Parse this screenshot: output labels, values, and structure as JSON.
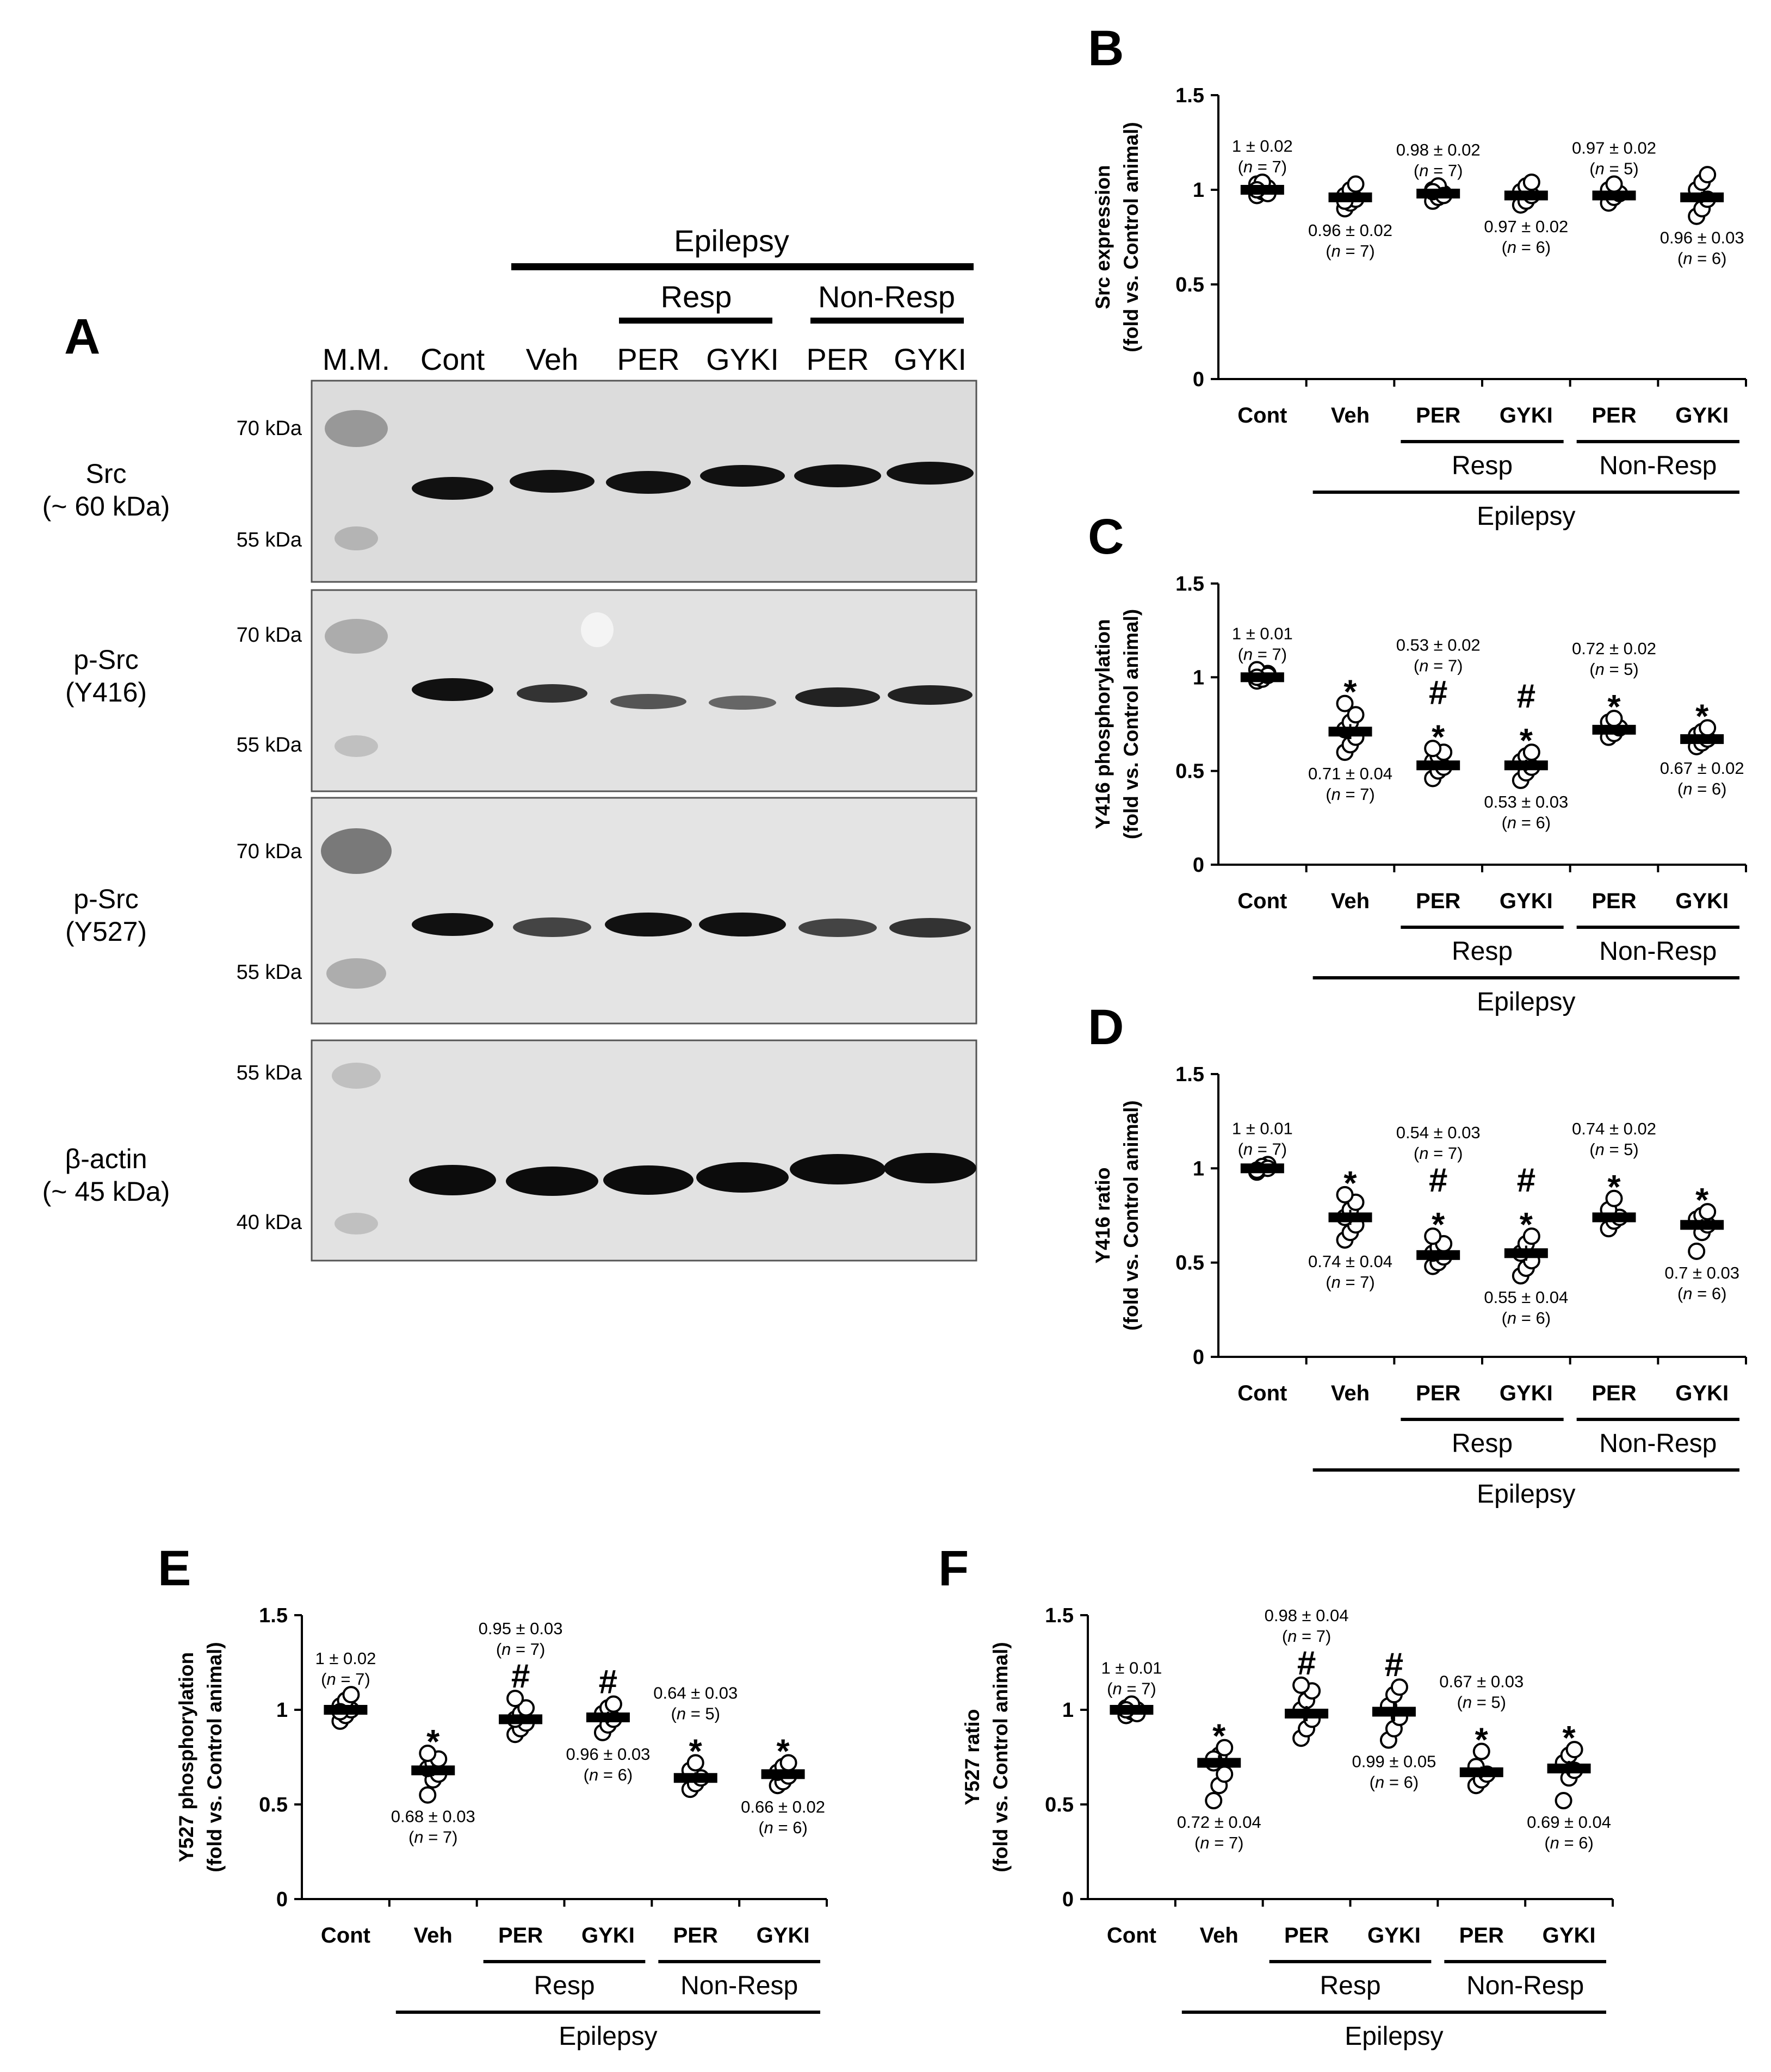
{
  "figure": {
    "panel_a": {
      "letter": "A",
      "group_label": "Epilepsy",
      "resp_label": "Resp",
      "nonresp_label": "Non-Resp",
      "lanes": [
        "M.M.",
        "Cont",
        "Veh",
        "PER",
        "GYKI",
        "PER",
        "GYKI"
      ],
      "blots": [
        {
          "name": "Src",
          "sub": "(~ 60 kDa)",
          "markers": [
            "70 kDa",
            "55 kDa"
          ]
        },
        {
          "name": "p-Src",
          "sub": "(Y416)",
          "markers": [
            "70 kDa",
            "55 kDa"
          ]
        },
        {
          "name": "p-Src",
          "sub": "(Y527)",
          "markers": [
            "70 kDa",
            "55 kDa"
          ]
        },
        {
          "name": "β-actin",
          "sub": "(~ 45 kDa)",
          "markers": [
            "55 kDa",
            "40 kDa"
          ]
        }
      ]
    },
    "common": {
      "categories": [
        "Cont",
        "Veh",
        "PER",
        "GYKI",
        "PER",
        "GYKI"
      ],
      "resp_label": "Resp",
      "nonresp_label": "Non-Resp",
      "group_label": "Epilepsy",
      "y_unit_label": "(fold vs. Control animal)",
      "yticks": [
        "0",
        "0.5",
        "1",
        "1.5"
      ]
    }
  },
  "chart_data": [
    {
      "panel": "B",
      "type": "scatter",
      "title": "",
      "ylabel": "Src expression",
      "ylim": [
        0,
        1.5
      ],
      "means": [
        1.0,
        0.96,
        0.98,
        0.97,
        0.97,
        0.96
      ],
      "sem": [
        0.02,
        0.02,
        0.02,
        0.02,
        0.02,
        0.03
      ],
      "n": [
        7,
        7,
        7,
        6,
        5,
        6
      ],
      "labels": [
        "1 ± 0.02",
        "0.96 ± 0.02",
        "0.98 ± 0.02",
        "0.97 ± 0.02",
        "0.97 ± 0.02",
        "0.96 ± 0.03"
      ],
      "n_labels": [
        "(n = 7)",
        "(n = 7)",
        "(n = 7)",
        "(n = 6)",
        "(n = 5)",
        "(n = 6)"
      ],
      "label_pos": [
        "above",
        "below",
        "above",
        "below",
        "above",
        "below"
      ],
      "points": [
        [
          0.97,
          0.99,
          1.01,
          1.03,
          1.04,
          0.98,
          1.0
        ],
        [
          0.9,
          0.93,
          0.95,
          0.97,
          1.0,
          1.03,
          0.94
        ],
        [
          0.94,
          0.96,
          0.98,
          1.0,
          1.02,
          0.97,
          0.99
        ],
        [
          0.92,
          0.94,
          0.97,
          0.99,
          1.02,
          1.04
        ],
        [
          0.93,
          0.96,
          0.98,
          1.0,
          1.03
        ],
        [
          0.86,
          0.9,
          0.95,
          1.0,
          1.04,
          1.08
        ]
      ],
      "sig": [
        [],
        [],
        [],
        [],
        [],
        []
      ]
    },
    {
      "panel": "C",
      "type": "scatter",
      "title": "",
      "ylabel": "Y416 phosphorylation",
      "ylim": [
        0,
        1.5
      ],
      "means": [
        1.0,
        0.71,
        0.53,
        0.53,
        0.72,
        0.67
      ],
      "sem": [
        0.01,
        0.04,
        0.02,
        0.03,
        0.02,
        0.02
      ],
      "n": [
        7,
        7,
        7,
        6,
        5,
        6
      ],
      "labels": [
        "1 ± 0.01",
        "0.71 ± 0.04",
        "0.53 ± 0.02",
        "0.53 ± 0.03",
        "0.72 ± 0.02",
        "0.67 ± 0.02"
      ],
      "n_labels": [
        "(n = 7)",
        "(n = 7)",
        "(n = 7)",
        "(n = 6)",
        "(n = 5)",
        "(n = 6)"
      ],
      "label_pos": [
        "above",
        "below",
        "above",
        "below",
        "above",
        "below"
      ],
      "points": [
        [
          0.98,
          1.0,
          1.02,
          1.04,
          0.99,
          1.01,
          1.0
        ],
        [
          0.6,
          0.64,
          0.68,
          0.72,
          0.76,
          0.8,
          0.86
        ],
        [
          0.46,
          0.5,
          0.52,
          0.55,
          0.58,
          0.6,
          0.62
        ],
        [
          0.45,
          0.49,
          0.52,
          0.55,
          0.58,
          0.6
        ],
        [
          0.68,
          0.7,
          0.73,
          0.76,
          0.78
        ],
        [
          0.63,
          0.65,
          0.67,
          0.69,
          0.71,
          0.73
        ]
      ],
      "sig": [
        [],
        [
          "*"
        ],
        [
          "*",
          "#"
        ],
        [
          "*",
          "#"
        ],
        [
          "*"
        ],
        [
          "*"
        ]
      ]
    },
    {
      "panel": "D",
      "type": "scatter",
      "title": "",
      "ylabel": "Y416 ratio",
      "ylim": [
        0,
        1.5
      ],
      "means": [
        1.0,
        0.74,
        0.54,
        0.55,
        0.74,
        0.7
      ],
      "sem": [
        0.01,
        0.04,
        0.03,
        0.04,
        0.02,
        0.03
      ],
      "n": [
        7,
        7,
        7,
        6,
        5,
        6
      ],
      "labels": [
        "1 ± 0.01",
        "0.74 ± 0.04",
        "0.54 ± 0.03",
        "0.55 ± 0.04",
        "0.74 ± 0.02",
        "0.7 ± 0.03"
      ],
      "n_labels": [
        "(n = 7)",
        "(n = 7)",
        "(n = 7)",
        "(n = 6)",
        "(n = 5)",
        "(n = 6)"
      ],
      "label_pos": [
        "above",
        "below",
        "above",
        "below",
        "above",
        "below"
      ],
      "points": [
        [
          0.98,
          1.0,
          1.02,
          0.99,
          1.01,
          1.0,
          0.99
        ],
        [
          0.62,
          0.66,
          0.7,
          0.74,
          0.78,
          0.82,
          0.86
        ],
        [
          0.48,
          0.5,
          0.53,
          0.55,
          0.58,
          0.6,
          0.64
        ],
        [
          0.43,
          0.47,
          0.51,
          0.55,
          0.6,
          0.64
        ],
        [
          0.68,
          0.72,
          0.74,
          0.78,
          0.84
        ],
        [
          0.56,
          0.66,
          0.7,
          0.73,
          0.75,
          0.77
        ]
      ],
      "sig": [
        [],
        [
          "*"
        ],
        [
          "*",
          "#"
        ],
        [
          "*",
          "#"
        ],
        [
          "*"
        ],
        [
          "*"
        ]
      ]
    },
    {
      "panel": "E",
      "type": "scatter",
      "title": "",
      "ylabel": "Y527 phosphorylation",
      "ylim": [
        0,
        1.5
      ],
      "means": [
        1.0,
        0.68,
        0.95,
        0.96,
        0.64,
        0.66
      ],
      "sem": [
        0.02,
        0.03,
        0.03,
        0.03,
        0.03,
        0.02
      ],
      "n": [
        7,
        7,
        7,
        6,
        5,
        6
      ],
      "labels": [
        "1 ± 0.02",
        "0.68 ± 0.03",
        "0.95 ± 0.03",
        "0.96 ± 0.03",
        "0.64 ± 0.03",
        "0.66 ± 0.02"
      ],
      "n_labels": [
        "(n = 7)",
        "(n = 7)",
        "(n = 7)",
        "(n = 6)",
        "(n = 5)",
        "(n = 6)"
      ],
      "label_pos": [
        "above",
        "below",
        "above",
        "below",
        "above",
        "below"
      ],
      "points": [
        [
          0.94,
          0.97,
          1.0,
          1.02,
          1.05,
          1.08,
          0.99
        ],
        [
          0.55,
          0.63,
          0.66,
          0.69,
          0.72,
          0.74,
          0.77
        ],
        [
          0.87,
          0.9,
          0.93,
          0.95,
          0.98,
          1.01,
          1.06
        ],
        [
          0.88,
          0.92,
          0.95,
          0.98,
          1.01,
          1.03
        ],
        [
          0.58,
          0.61,
          0.64,
          0.68,
          0.72
        ],
        [
          0.6,
          0.62,
          0.65,
          0.67,
          0.7,
          0.72
        ]
      ],
      "sig": [
        [],
        [
          "*"
        ],
        [
          "#"
        ],
        [
          "#"
        ],
        [
          "*"
        ],
        [
          "*"
        ]
      ]
    },
    {
      "panel": "F",
      "type": "scatter",
      "title": "",
      "ylabel": "Y527 ratio",
      "ylim": [
        0,
        1.5
      ],
      "means": [
        1.0,
        0.72,
        0.98,
        0.99,
        0.67,
        0.69
      ],
      "sem": [
        0.01,
        0.04,
        0.04,
        0.05,
        0.03,
        0.04
      ],
      "n": [
        7,
        7,
        7,
        6,
        5,
        6
      ],
      "labels": [
        "1 ± 0.01",
        "0.72 ± 0.04",
        "0.98 ± 0.04",
        "0.99 ± 0.05",
        "0.67 ± 0.03",
        "0.69 ± 0.04"
      ],
      "n_labels": [
        "(n = 7)",
        "(n = 7)",
        "(n = 7)",
        "(n = 6)",
        "(n = 5)",
        "(n = 6)"
      ],
      "label_pos": [
        "above",
        "below",
        "above",
        "below",
        "above",
        "below"
      ],
      "points": [
        [
          0.97,
          0.99,
          1.0,
          1.01,
          1.03,
          0.98,
          1.0
        ],
        [
          0.52,
          0.6,
          0.66,
          0.72,
          0.76,
          0.8,
          0.74
        ],
        [
          0.85,
          0.9,
          0.95,
          1.0,
          1.05,
          1.1,
          1.13
        ],
        [
          0.84,
          0.9,
          0.96,
          1.02,
          1.08,
          1.12
        ],
        [
          0.6,
          0.63,
          0.66,
          0.7,
          0.78
        ],
        [
          0.52,
          0.64,
          0.68,
          0.72,
          0.76,
          0.79
        ]
      ],
      "sig": [
        [],
        [
          "*"
        ],
        [
          "#"
        ],
        [
          "#"
        ],
        [
          "*"
        ],
        [
          "*"
        ]
      ]
    }
  ]
}
